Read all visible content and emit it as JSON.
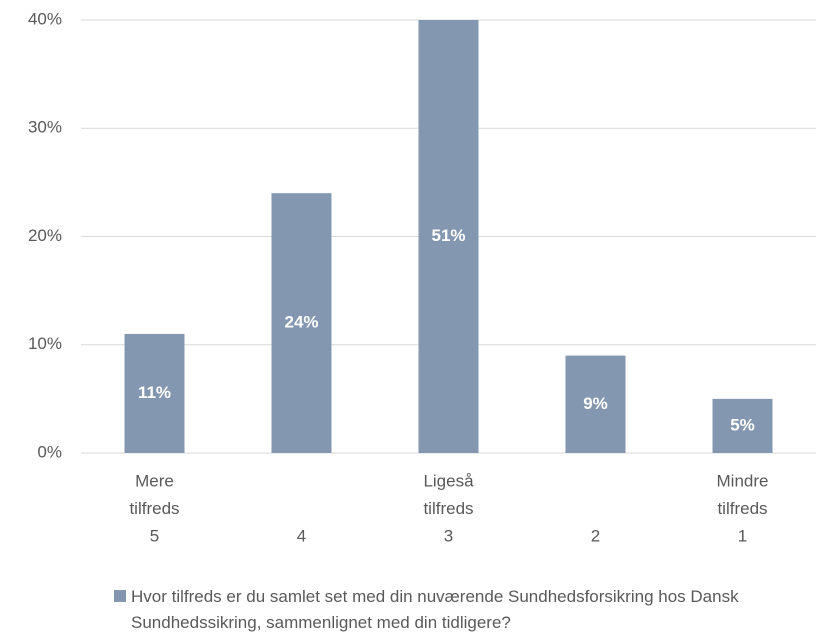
{
  "chart_data": {
    "type": "bar",
    "categories": [
      [
        "Mere",
        "tilfreds",
        "5"
      ],
      [
        "4"
      ],
      [
        "Ligeså",
        "tilfreds",
        "3"
      ],
      [
        "2"
      ],
      [
        "Mindre",
        "tilfreds",
        "1"
      ]
    ],
    "series": [
      {
        "name": "Hvor tilfreds er du samlet set med din nuværende Sundhedsforsikring hos Dansk Sundhedssikring, sammenlignet med din tidligere?",
        "color": "#8497b0",
        "values": [
          11,
          24,
          51,
          9,
          5
        ],
        "value_labels": [
          "11%",
          "24%",
          "51%",
          "9%",
          "5%"
        ]
      }
    ],
    "ylim": [
      0,
      40
    ],
    "yticks": [
      {
        "value": 0,
        "label": "0%"
      },
      {
        "value": 10,
        "label": "10%"
      },
      {
        "value": 20,
        "label": "20%"
      },
      {
        "value": 30,
        "label": "30%"
      },
      {
        "value": 40,
        "label": "40%"
      }
    ],
    "grid": true
  }
}
